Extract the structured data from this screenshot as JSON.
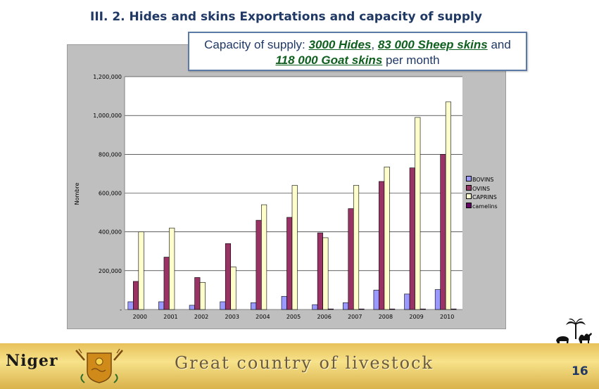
{
  "slide": {
    "title": "III. 2. Hides and skins Exportations and capacity of supply",
    "page_number": "16"
  },
  "callout": {
    "prefix": "Capacity of supply: ",
    "hides": "3000 Hides",
    "sep1": ", ",
    "sheep": "83 000 Sheep skins",
    "sep2": " and ",
    "goat": "118 000 Goat skins",
    "suffix": " per month"
  },
  "footer": {
    "country": "Niger",
    "slogan": "Great country of livestock"
  },
  "chart_data": {
    "type": "bar",
    "ylabel": "Nombre",
    "xlabel": "",
    "ylim": [
      0,
      1200000
    ],
    "yticks": [
      {
        "value": 0,
        "label": "-"
      },
      {
        "value": 200000,
        "label": "200,000"
      },
      {
        "value": 400000,
        "label": "400,000"
      },
      {
        "value": 600000,
        "label": "600,000"
      },
      {
        "value": 800000,
        "label": "800,000"
      },
      {
        "value": 1000000,
        "label": "1,000,000"
      },
      {
        "value": 1200000,
        "label": "1,200,000"
      }
    ],
    "grid": true,
    "legend_position": "right",
    "categories": [
      "2000",
      "2001",
      "2002",
      "2003",
      "2004",
      "2005",
      "2006",
      "2007",
      "2008",
      "2009",
      "2010"
    ],
    "series": [
      {
        "name": "BOVINS",
        "color": "#9999ff",
        "values": [
          40000,
          40000,
          22000,
          40000,
          35000,
          68000,
          25000,
          35000,
          100000,
          80000,
          103000
        ]
      },
      {
        "name": "OVINS",
        "color": "#993366",
        "values": [
          145000,
          270000,
          165000,
          340000,
          460000,
          475000,
          395000,
          520000,
          660000,
          730000,
          800000
        ]
      },
      {
        "name": "CAPRINS",
        "color": "#ffffcc",
        "values": [
          400000,
          420000,
          140000,
          220000,
          540000,
          640000,
          370000,
          640000,
          735000,
          990000,
          1070000
        ]
      },
      {
        "name": "camelins",
        "color": "#660066",
        "values": [
          0,
          0,
          0,
          0,
          0,
          0,
          3000,
          3000,
          3000,
          3000,
          3000
        ]
      }
    ]
  }
}
